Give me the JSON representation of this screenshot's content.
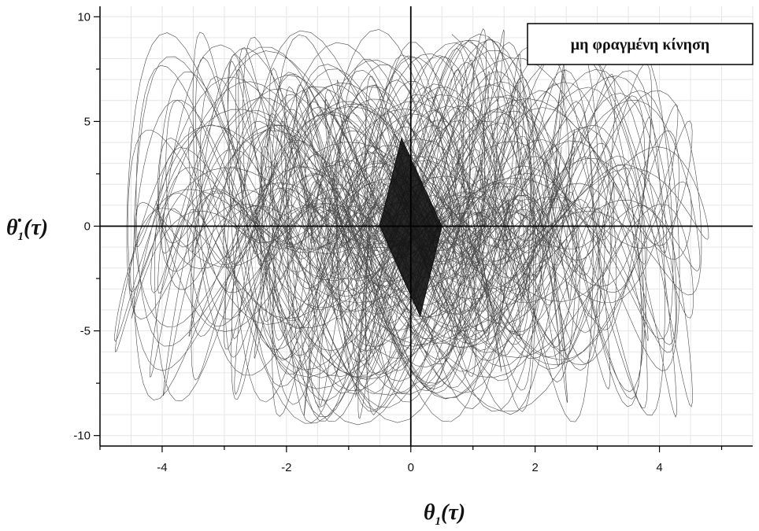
{
  "chart_data": {
    "type": "line",
    "title": "",
    "annotation": "μη φραγμένη κίνηση",
    "xlabel": {
      "main": "θ",
      "sub": "1",
      "suffix": "(τ)"
    },
    "ylabel": {
      "main": "θ̇",
      "sub": "1",
      "suffix": "(τ)"
    },
    "xlim": [
      -5,
      5.5
    ],
    "ylim": [
      -10.5,
      10.5
    ],
    "xticks": [
      -4,
      -2,
      0,
      2,
      4
    ],
    "yticks": [
      -10,
      -5,
      0,
      5,
      10
    ],
    "xtick_labels": [
      "-4",
      "-2",
      "0",
      "2",
      "4"
    ],
    "ytick_labels": [
      "-10",
      "-5",
      "0",
      "5",
      "10"
    ],
    "grid": true,
    "series": [
      {
        "style": "dense-trajectory",
        "x_range": [
          -4.9,
          4.9
        ],
        "y_range": [
          -10,
          9.5
        ],
        "envelope": {
          "x_extent": 4.9,
          "y_extent": 9.5
        },
        "core": {
          "x": [
            -0.5,
            0.5
          ],
          "y": [
            -4.3,
            4.2
          ]
        }
      }
    ],
    "colors": {
      "trace": "#111111",
      "axes": "#000000",
      "grid": "#e6e6e6"
    }
  }
}
